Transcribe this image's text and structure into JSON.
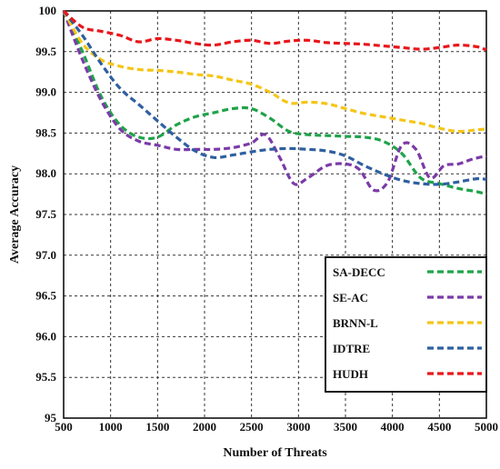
{
  "chart_data": {
    "type": "line",
    "title": "",
    "xlabel": "Number of Threats",
    "ylabel": "Average Accuracy",
    "xlim": [
      500,
      5000
    ],
    "ylim": [
      95,
      100
    ],
    "xticks": [
      500,
      1000,
      1500,
      2000,
      2500,
      3000,
      3500,
      4000,
      4500,
      5000
    ],
    "yticks": [
      95,
      95.5,
      96,
      96.5,
      97,
      97.5,
      98,
      98.5,
      99,
      99.5,
      100
    ],
    "xtick_labels": [
      "500",
      "1000",
      "1500",
      "2000",
      "2500",
      "3000",
      "3500",
      "4000",
      "4500",
      "5000"
    ],
    "ytick_labels": [
      "95",
      "95.5",
      "96.0",
      "96.5",
      "97.0",
      "97.5",
      "98.0",
      "98.5",
      "99.0",
      "99.5",
      "100"
    ],
    "grid": true,
    "line_style": "dashed",
    "legend_position": "bottom-right",
    "series": [
      {
        "name": "SA-DECC",
        "color": "#1fa34a",
        "x": [
          500,
          700,
          900,
          1100,
          1300,
          1500,
          1700,
          1900,
          2100,
          2300,
          2500,
          2700,
          2900,
          3100,
          3300,
          3500,
          3700,
          3900,
          4100,
          4300,
          4500,
          4700,
          4900,
          5000
        ],
        "y": [
          100,
          99.5,
          98.95,
          98.6,
          98.45,
          98.45,
          98.6,
          98.7,
          98.75,
          98.8,
          98.8,
          98.68,
          98.52,
          98.48,
          98.47,
          98.46,
          98.45,
          98.4,
          98.25,
          97.95,
          97.88,
          97.82,
          97.78,
          97.75
        ]
      },
      {
        "name": "SE-AC",
        "color": "#7b3aa8",
        "x": [
          500,
          700,
          900,
          1100,
          1300,
          1500,
          1700,
          1900,
          2100,
          2300,
          2500,
          2650,
          2800,
          2950,
          3100,
          3300,
          3500,
          3650,
          3800,
          3950,
          4100,
          4250,
          4400,
          4550,
          4700,
          4850,
          5000
        ],
        "y": [
          100,
          99.4,
          98.9,
          98.55,
          98.4,
          98.35,
          98.3,
          98.3,
          98.3,
          98.32,
          98.38,
          98.48,
          98.2,
          97.88,
          97.95,
          98.1,
          98.12,
          98.05,
          97.8,
          97.9,
          98.35,
          98.3,
          97.95,
          98.1,
          98.12,
          98.18,
          98.22
        ]
      },
      {
        "name": "BRNN-L",
        "color": "#f5c518",
        "x": [
          500,
          700,
          900,
          1100,
          1300,
          1500,
          1700,
          1900,
          2100,
          2300,
          2500,
          2700,
          2900,
          3100,
          3300,
          3500,
          3700,
          3900,
          4100,
          4300,
          4500,
          4700,
          4900,
          5000
        ],
        "y": [
          100,
          99.6,
          99.4,
          99.32,
          99.28,
          99.27,
          99.25,
          99.22,
          99.2,
          99.15,
          99.1,
          99.0,
          98.87,
          98.88,
          98.86,
          98.8,
          98.74,
          98.7,
          98.66,
          98.62,
          98.56,
          98.52,
          98.54,
          98.55
        ]
      },
      {
        "name": "IDTRE",
        "color": "#2f5fa0",
        "x": [
          500,
          700,
          900,
          1100,
          1300,
          1500,
          1700,
          1900,
          2100,
          2300,
          2500,
          2700,
          2900,
          3100,
          3300,
          3500,
          3700,
          3900,
          4100,
          4300,
          4500,
          4700,
          4900,
          5000
        ],
        "y": [
          100,
          99.7,
          99.35,
          99.05,
          98.85,
          98.65,
          98.45,
          98.28,
          98.2,
          98.23,
          98.27,
          98.3,
          98.31,
          98.3,
          98.28,
          98.22,
          98.1,
          98.0,
          97.92,
          97.88,
          97.87,
          97.9,
          97.94,
          97.93
        ]
      },
      {
        "name": "HUDH",
        "color": "#e8161b",
        "x": [
          500,
          700,
          900,
          1100,
          1300,
          1500,
          1700,
          1900,
          2100,
          2300,
          2500,
          2700,
          2900,
          3100,
          3300,
          3500,
          3700,
          3900,
          4100,
          4300,
          4500,
          4700,
          4900,
          5000
        ],
        "y": [
          100,
          99.8,
          99.75,
          99.7,
          99.62,
          99.66,
          99.64,
          99.6,
          99.58,
          99.62,
          99.64,
          99.6,
          99.63,
          99.64,
          99.61,
          99.6,
          99.59,
          99.57,
          99.55,
          99.53,
          99.55,
          99.58,
          99.56,
          99.52
        ]
      }
    ]
  }
}
